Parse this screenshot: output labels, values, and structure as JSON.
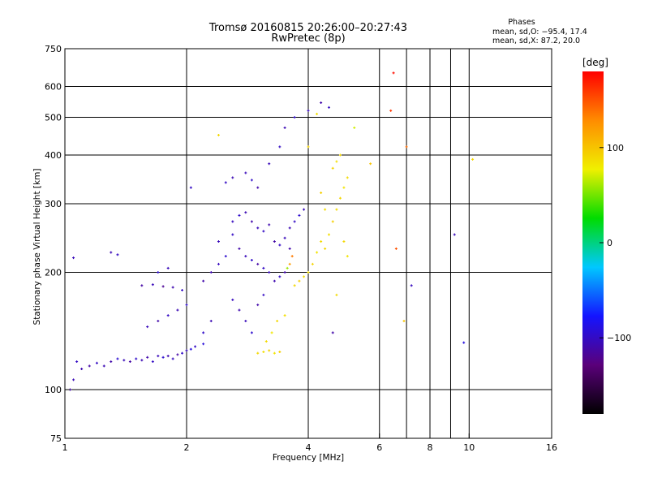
{
  "figure": {
    "title": "Tromsø 20160815 20:26:00–20:27:43",
    "subtitle": "RwPretec (8p)",
    "stats": {
      "title": "Phases",
      "line1": "mean, sd,O: −95.4, 17.4",
      "line2": "mean, sd,X:  87.2, 20.0"
    }
  },
  "chart_data": {
    "type": "scatter",
    "title": "Tromsø 20160815 20:26:00–20:27:43",
    "subtitle": "RwPretec (8p)",
    "xlabel": "Frequency [MHz]",
    "ylabel": "Stationary phase Virtual Height [km]",
    "x_scale": "log",
    "y_scale": "log",
    "xlim": [
      1,
      16
    ],
    "ylim": [
      75,
      750
    ],
    "x_ticks": [
      1,
      2,
      4,
      6,
      8,
      10,
      16
    ],
    "x_tick_labels": [
      "1",
      "2",
      "4",
      "6",
      "8",
      "10",
      "16"
    ],
    "x_gridlines": [
      1,
      2,
      4,
      6,
      7,
      8,
      9,
      10,
      16
    ],
    "y_ticks": [
      75,
      100,
      200,
      300,
      400,
      500,
      600,
      750
    ],
    "y_tick_labels": [
      "75",
      "100",
      "200",
      "300",
      "400",
      "500",
      "600",
      "750"
    ],
    "y_gridlines": [
      100,
      200,
      300,
      400,
      500,
      600
    ],
    "grid": true,
    "colorbar": {
      "label": "[deg]",
      "min": -180,
      "max": 180,
      "ticks": [
        100,
        0,
        -100
      ],
      "tick_labels": [
        "100",
        "0",
        "−100"
      ],
      "colors": [
        "#000000",
        "#5a007a",
        "#1414ff",
        "#00c8ff",
        "#00dc00",
        "#f0f000",
        "#ff8c00",
        "#ff0000"
      ]
    },
    "series": [
      {
        "mode": "O",
        "mean_phase": -95.4,
        "sd_phase": 17.4,
        "points": [
          [
            1.03,
            100,
            -110
          ],
          [
            1.05,
            106,
            -105
          ],
          [
            1.07,
            118,
            -100
          ],
          [
            1.1,
            113,
            -108
          ],
          [
            1.15,
            115,
            -112
          ],
          [
            1.2,
            117,
            -100
          ],
          [
            1.25,
            115,
            -106
          ],
          [
            1.3,
            118,
            -110
          ],
          [
            1.35,
            120,
            -95
          ],
          [
            1.4,
            119,
            -104
          ],
          [
            1.45,
            118,
            -112
          ],
          [
            1.5,
            120,
            -98
          ],
          [
            1.55,
            119,
            -106
          ],
          [
            1.6,
            121,
            -110
          ],
          [
            1.65,
            118,
            -100
          ],
          [
            1.7,
            122,
            -104
          ],
          [
            1.75,
            121,
            -96
          ],
          [
            1.8,
            122,
            -108
          ],
          [
            1.85,
            120,
            -102
          ],
          [
            1.9,
            123,
            -112
          ],
          [
            1.95,
            124,
            -98
          ],
          [
            2.0,
            126,
            -104
          ],
          [
            2.05,
            127,
            -90
          ],
          [
            2.1,
            129,
            -100
          ],
          [
            2.2,
            131,
            -92
          ],
          [
            1.6,
            145,
            -104
          ],
          [
            1.7,
            150,
            -110
          ],
          [
            1.8,
            155,
            -100
          ],
          [
            1.9,
            160,
            -106
          ],
          [
            2.0,
            165,
            -98
          ],
          [
            1.55,
            185,
            -112
          ],
          [
            1.65,
            186,
            -104
          ],
          [
            1.75,
            184,
            -118
          ],
          [
            1.85,
            183,
            -108
          ],
          [
            1.95,
            180,
            -100
          ],
          [
            1.7,
            200,
            -96
          ],
          [
            1.8,
            205,
            -104
          ],
          [
            1.35,
            222,
            -100
          ],
          [
            1.3,
            225,
            -106
          ],
          [
            1.05,
            218,
            -104
          ],
          [
            2.2,
            190,
            -110
          ],
          [
            2.3,
            200,
            -108
          ],
          [
            2.4,
            210,
            -102
          ],
          [
            2.5,
            220,
            -96
          ],
          [
            2.4,
            240,
            -104
          ],
          [
            2.6,
            250,
            -100
          ],
          [
            2.7,
            230,
            -110
          ],
          [
            2.8,
            220,
            -104
          ],
          [
            2.9,
            215,
            -98
          ],
          [
            3.0,
            210,
            -112
          ],
          [
            3.1,
            205,
            -100
          ],
          [
            3.2,
            200,
            -104
          ],
          [
            3.3,
            190,
            -108
          ],
          [
            3.4,
            195,
            -100
          ],
          [
            3.5,
            200,
            -110
          ],
          [
            2.6,
            270,
            -102
          ],
          [
            2.7,
            280,
            -98
          ],
          [
            2.8,
            285,
            -106
          ],
          [
            2.9,
            270,
            -110
          ],
          [
            3.0,
            260,
            -104
          ],
          [
            3.1,
            255,
            -100
          ],
          [
            3.2,
            265,
            -108
          ],
          [
            3.3,
            240,
            -112
          ],
          [
            3.4,
            235,
            -100
          ],
          [
            3.5,
            245,
            -104
          ],
          [
            3.6,
            260,
            -106
          ],
          [
            3.7,
            270,
            -100
          ],
          [
            3.8,
            280,
            -96
          ],
          [
            3.9,
            290,
            -104
          ],
          [
            3.6,
            230,
            -110
          ],
          [
            2.5,
            340,
            -100
          ],
          [
            2.6,
            350,
            -106
          ],
          [
            2.8,
            360,
            -104
          ],
          [
            2.9,
            345,
            -98
          ],
          [
            3.0,
            330,
            -110
          ],
          [
            3.2,
            380,
            -104
          ],
          [
            3.4,
            420,
            -100
          ],
          [
            3.5,
            470,
            -106
          ],
          [
            3.7,
            500,
            -98
          ],
          [
            4.0,
            520,
            -104
          ],
          [
            4.3,
            545,
            -110
          ],
          [
            4.5,
            530,
            -100
          ],
          [
            2.6,
            170,
            -102
          ],
          [
            2.7,
            160,
            -108
          ],
          [
            2.8,
            150,
            -104
          ],
          [
            2.9,
            140,
            -96
          ],
          [
            3.0,
            165,
            -110
          ],
          [
            3.1,
            175,
            -100
          ],
          [
            2.3,
            150,
            -106
          ],
          [
            2.2,
            140,
            -98
          ],
          [
            4.6,
            140,
            -110
          ],
          [
            9.7,
            132,
            -90
          ],
          [
            7.2,
            185,
            -102
          ],
          [
            9.2,
            250,
            -104
          ],
          [
            2.05,
            330,
            -100
          ]
        ]
      },
      {
        "mode": "X",
        "mean_phase": 87.2,
        "sd_phase": 20.0,
        "points": [
          [
            3.0,
            124,
            90
          ],
          [
            3.1,
            125,
            86
          ],
          [
            3.2,
            126,
            92
          ],
          [
            3.3,
            124,
            84
          ],
          [
            3.4,
            125,
            94
          ],
          [
            3.15,
            133,
            88
          ],
          [
            3.25,
            140,
            82
          ],
          [
            3.35,
            150,
            90
          ],
          [
            3.5,
            155,
            86
          ],
          [
            3.7,
            185,
            90
          ],
          [
            3.8,
            190,
            94
          ],
          [
            3.9,
            195,
            86
          ],
          [
            4.0,
            200,
            88
          ],
          [
            4.1,
            210,
            92
          ],
          [
            4.2,
            225,
            84
          ],
          [
            4.3,
            240,
            88
          ],
          [
            4.4,
            230,
            90
          ],
          [
            4.5,
            250,
            86
          ],
          [
            4.6,
            270,
            94
          ],
          [
            4.7,
            290,
            88
          ],
          [
            4.8,
            310,
            90
          ],
          [
            4.9,
            330,
            84
          ],
          [
            5.0,
            350,
            88
          ],
          [
            4.6,
            370,
            92
          ],
          [
            4.7,
            385,
            86
          ],
          [
            4.8,
            400,
            90
          ],
          [
            4.3,
            320,
            94
          ],
          [
            4.4,
            290,
            88
          ],
          [
            4.0,
            420,
            92
          ],
          [
            4.2,
            510,
            86
          ],
          [
            4.9,
            240,
            90
          ],
          [
            5.0,
            220,
            84
          ],
          [
            4.7,
            175,
            88
          ],
          [
            3.6,
            210,
            120
          ],
          [
            3.65,
            220,
            135
          ],
          [
            3.55,
            205,
            60
          ],
          [
            2.4,
            450,
            90
          ],
          [
            5.2,
            470,
            70
          ],
          [
            10.2,
            390,
            90
          ],
          [
            5.7,
            380,
            100
          ],
          [
            6.5,
            650,
            175
          ],
          [
            6.4,
            520,
            160
          ],
          [
            7.0,
            420,
            140
          ],
          [
            6.6,
            230,
            150
          ],
          [
            6.9,
            150,
            100
          ]
        ]
      }
    ]
  }
}
